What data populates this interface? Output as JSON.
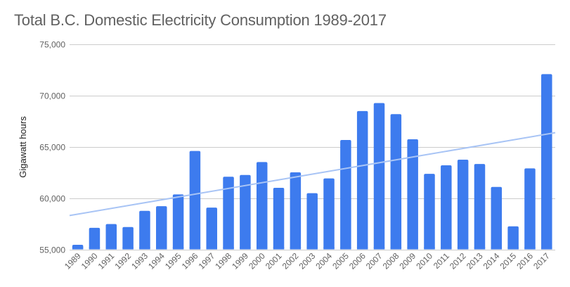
{
  "chart_data": {
    "type": "bar",
    "title": "Total B.C. Domestic Electricity Consumption 1989-2017",
    "xlabel": "",
    "ylabel": "Gigawatt hours",
    "ylim": [
      55000,
      75000
    ],
    "yticks": [
      55000,
      60000,
      65000,
      70000,
      75000
    ],
    "ytick_labels": [
      "55,000",
      "60,000",
      "65,000",
      "70,000",
      "75,000"
    ],
    "grid": true,
    "legend": "none",
    "categories": [
      "1989",
      "1990",
      "1991",
      "1992",
      "1993",
      "1994",
      "1995",
      "1996",
      "1997",
      "1998",
      "1999",
      "2000",
      "2001",
      "2002",
      "2003",
      "2004",
      "2005",
      "2006",
      "2007",
      "2008",
      "2009",
      "2010",
      "2011",
      "2012",
      "2013",
      "2014",
      "2015",
      "2016",
      "2017"
    ],
    "series": [
      {
        "name": "Gigawatt hours",
        "color": "#3d7bee",
        "values": [
          55450,
          57100,
          57470,
          57180,
          58760,
          59210,
          60360,
          64600,
          59070,
          62080,
          62260,
          63520,
          61000,
          62510,
          60480,
          61920,
          65670,
          68490,
          69270,
          68190,
          65740,
          62370,
          63200,
          63750,
          63330,
          61090,
          57250,
          62900,
          72090
        ]
      }
    ],
    "trendline": {
      "type": "linear",
      "color": "#a8c4f5",
      "start_value": 58300,
      "end_value": 66380
    }
  }
}
